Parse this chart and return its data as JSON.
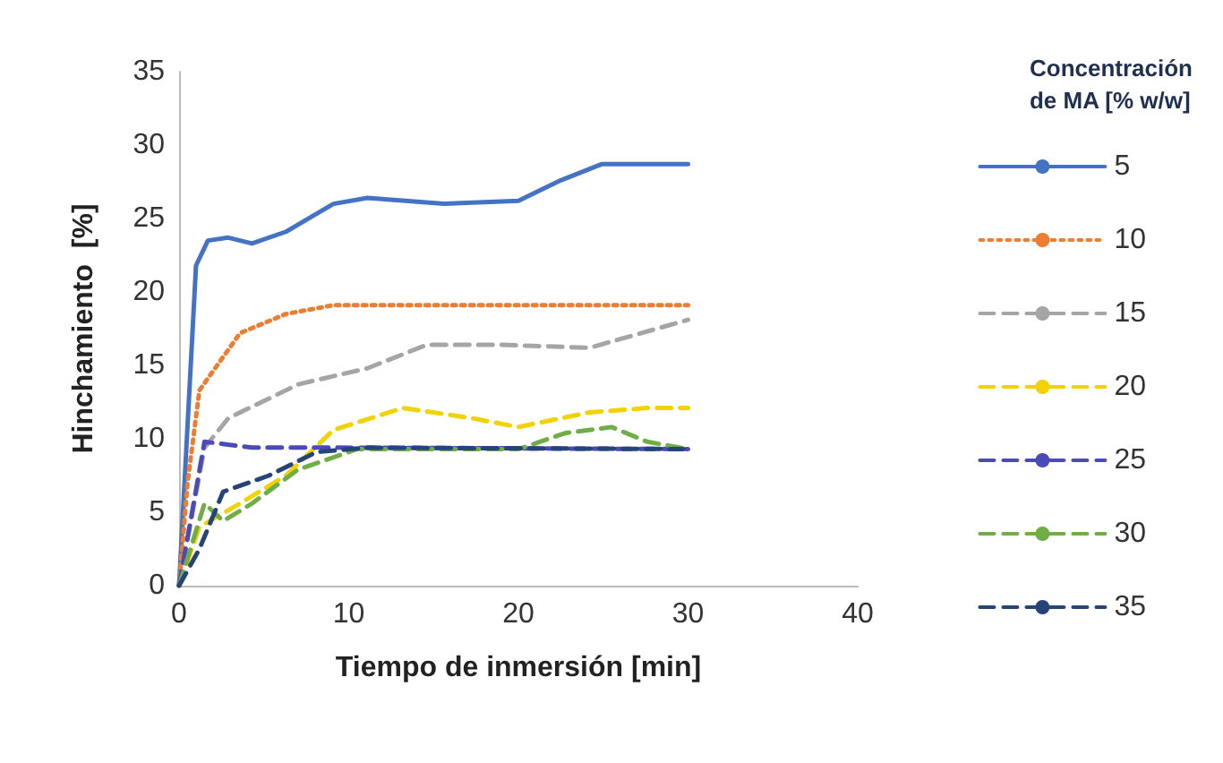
{
  "chart_data": {
    "type": "line",
    "xlabel": "Tiempo de inmersión [min]",
    "ylabel": "Hinchamiento  [%]",
    "legend_title": "Concentración\nde MA [% w/w]",
    "xlim": [
      0,
      40
    ],
    "xticks": [
      0,
      10,
      20,
      30,
      40
    ],
    "ylim": [
      0,
      35
    ],
    "yticks": [
      0,
      5,
      10,
      15,
      20,
      25,
      30,
      35
    ],
    "grid": false,
    "legend": "right",
    "marker": "none",
    "series": [
      {
        "name": "5",
        "color": "#4472c4",
        "line_style": "solid",
        "x": [
          0,
          1.0,
          1.7,
          2.9,
          4.3,
          6.3,
          9.1,
          11.1,
          15.6,
          20,
          22.5,
          24.9,
          27.6,
          30
        ],
        "values": [
          0,
          21.8,
          23.5,
          23.7,
          23.3,
          24.1,
          26.0,
          26.4,
          26.0,
          26.2,
          27.6,
          28.7,
          28.7,
          28.7
        ]
      },
      {
        "name": "10",
        "color": "#ed7d31",
        "line_style": "dotted",
        "x": [
          0,
          0.5,
          1.2,
          3.6,
          6.3,
          9.1,
          13.9,
          30
        ],
        "values": [
          0,
          7,
          13.3,
          17.2,
          18.5,
          19.1,
          19.1,
          19.1
        ]
      },
      {
        "name": "15",
        "color": "#a5a5a5",
        "line_style": "dashed",
        "x": [
          0,
          1.5,
          2.9,
          7,
          11.1,
          14.6,
          19,
          24.2,
          30
        ],
        "values": [
          0,
          9.4,
          11.4,
          13.7,
          14.8,
          16.4,
          16.4,
          16.2,
          18.1
        ]
      },
      {
        "name": "20",
        "color": "#f2d200",
        "line_style": "dashed",
        "x": [
          0,
          1.2,
          3.6,
          6.3,
          9.1,
          13.2,
          17.3,
          20,
          24.2,
          27.6,
          30
        ],
        "values": [
          0,
          4.0,
          5.6,
          7.5,
          10.6,
          12.1,
          11.4,
          10.8,
          11.8,
          12.1,
          12.1
        ]
      },
      {
        "name": "25",
        "color": "#4a4ab8",
        "line_style": "dashed",
        "x": [
          0,
          1.5,
          4.3,
          9.1,
          30
        ],
        "values": [
          0,
          9.8,
          9.4,
          9.4,
          9.3
        ]
      },
      {
        "name": "30",
        "color": "#70ad47",
        "line_style": "dashed",
        "x": [
          0,
          1.5,
          2.6,
          4.3,
          7,
          10.5,
          20,
          22.8,
          25.5,
          27.6,
          30
        ],
        "values": [
          0,
          5.6,
          4.4,
          5.6,
          7.9,
          9.3,
          9.3,
          10.4,
          10.8,
          9.8,
          9.3
        ]
      },
      {
        "name": "35",
        "color": "#264478",
        "line_style": "dashed",
        "x": [
          0,
          1.2,
          2.6,
          5.3,
          8.1,
          11.1,
          30
        ],
        "values": [
          0,
          2.5,
          6.4,
          7.5,
          9.1,
          9.4,
          9.3
        ]
      }
    ]
  }
}
